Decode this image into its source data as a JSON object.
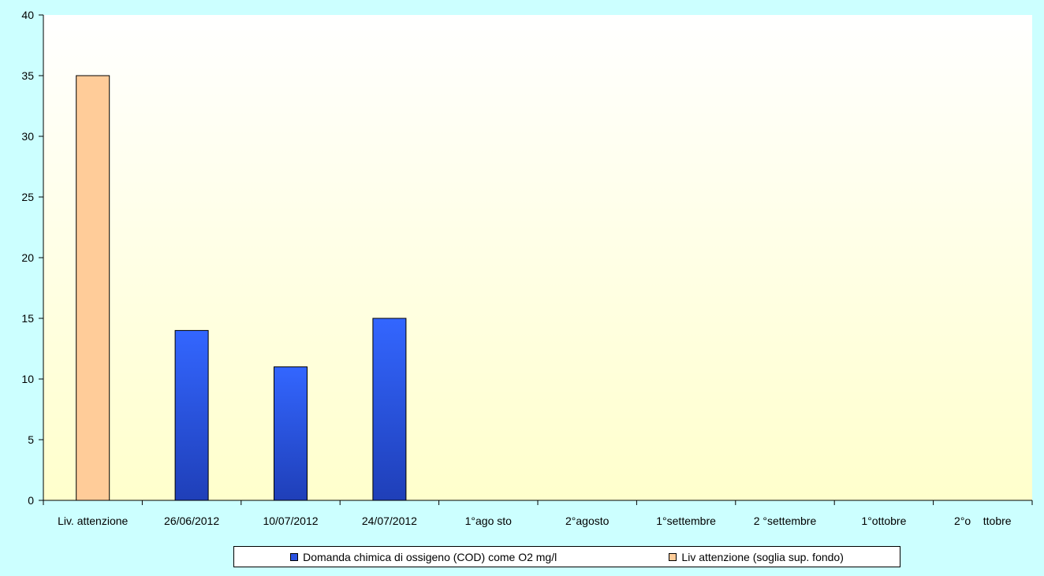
{
  "chart_data": {
    "type": "bar",
    "categories": [
      "Liv. attenzione",
      "26/06/2012",
      "10/07/2012",
      "24/07/2012",
      "1°ago sto",
      "2°agosto",
      "1°settembre",
      "2 °settembre",
      "1°ottobre",
      "2°o    ttobre"
    ],
    "series": [
      {
        "name": "Domanda chimica di ossigeno (COD) come O2 mg/l",
        "color": "#2a52e0",
        "values": [
          null,
          14,
          11,
          15,
          null,
          null,
          null,
          null,
          null,
          null
        ]
      },
      {
        "name": "Liv attenzione (soglia sup. fondo)",
        "color": "#ffcc99",
        "values": [
          35,
          null,
          null,
          null,
          null,
          null,
          null,
          null,
          null,
          null
        ]
      }
    ],
    "ylim": [
      0,
      40
    ],
    "yticks": [
      0,
      5,
      10,
      15,
      20,
      25,
      30,
      35,
      40
    ],
    "legend_position": "bottom",
    "plot_area_gradient": [
      "#ffffff",
      "#ffffcc"
    ]
  }
}
